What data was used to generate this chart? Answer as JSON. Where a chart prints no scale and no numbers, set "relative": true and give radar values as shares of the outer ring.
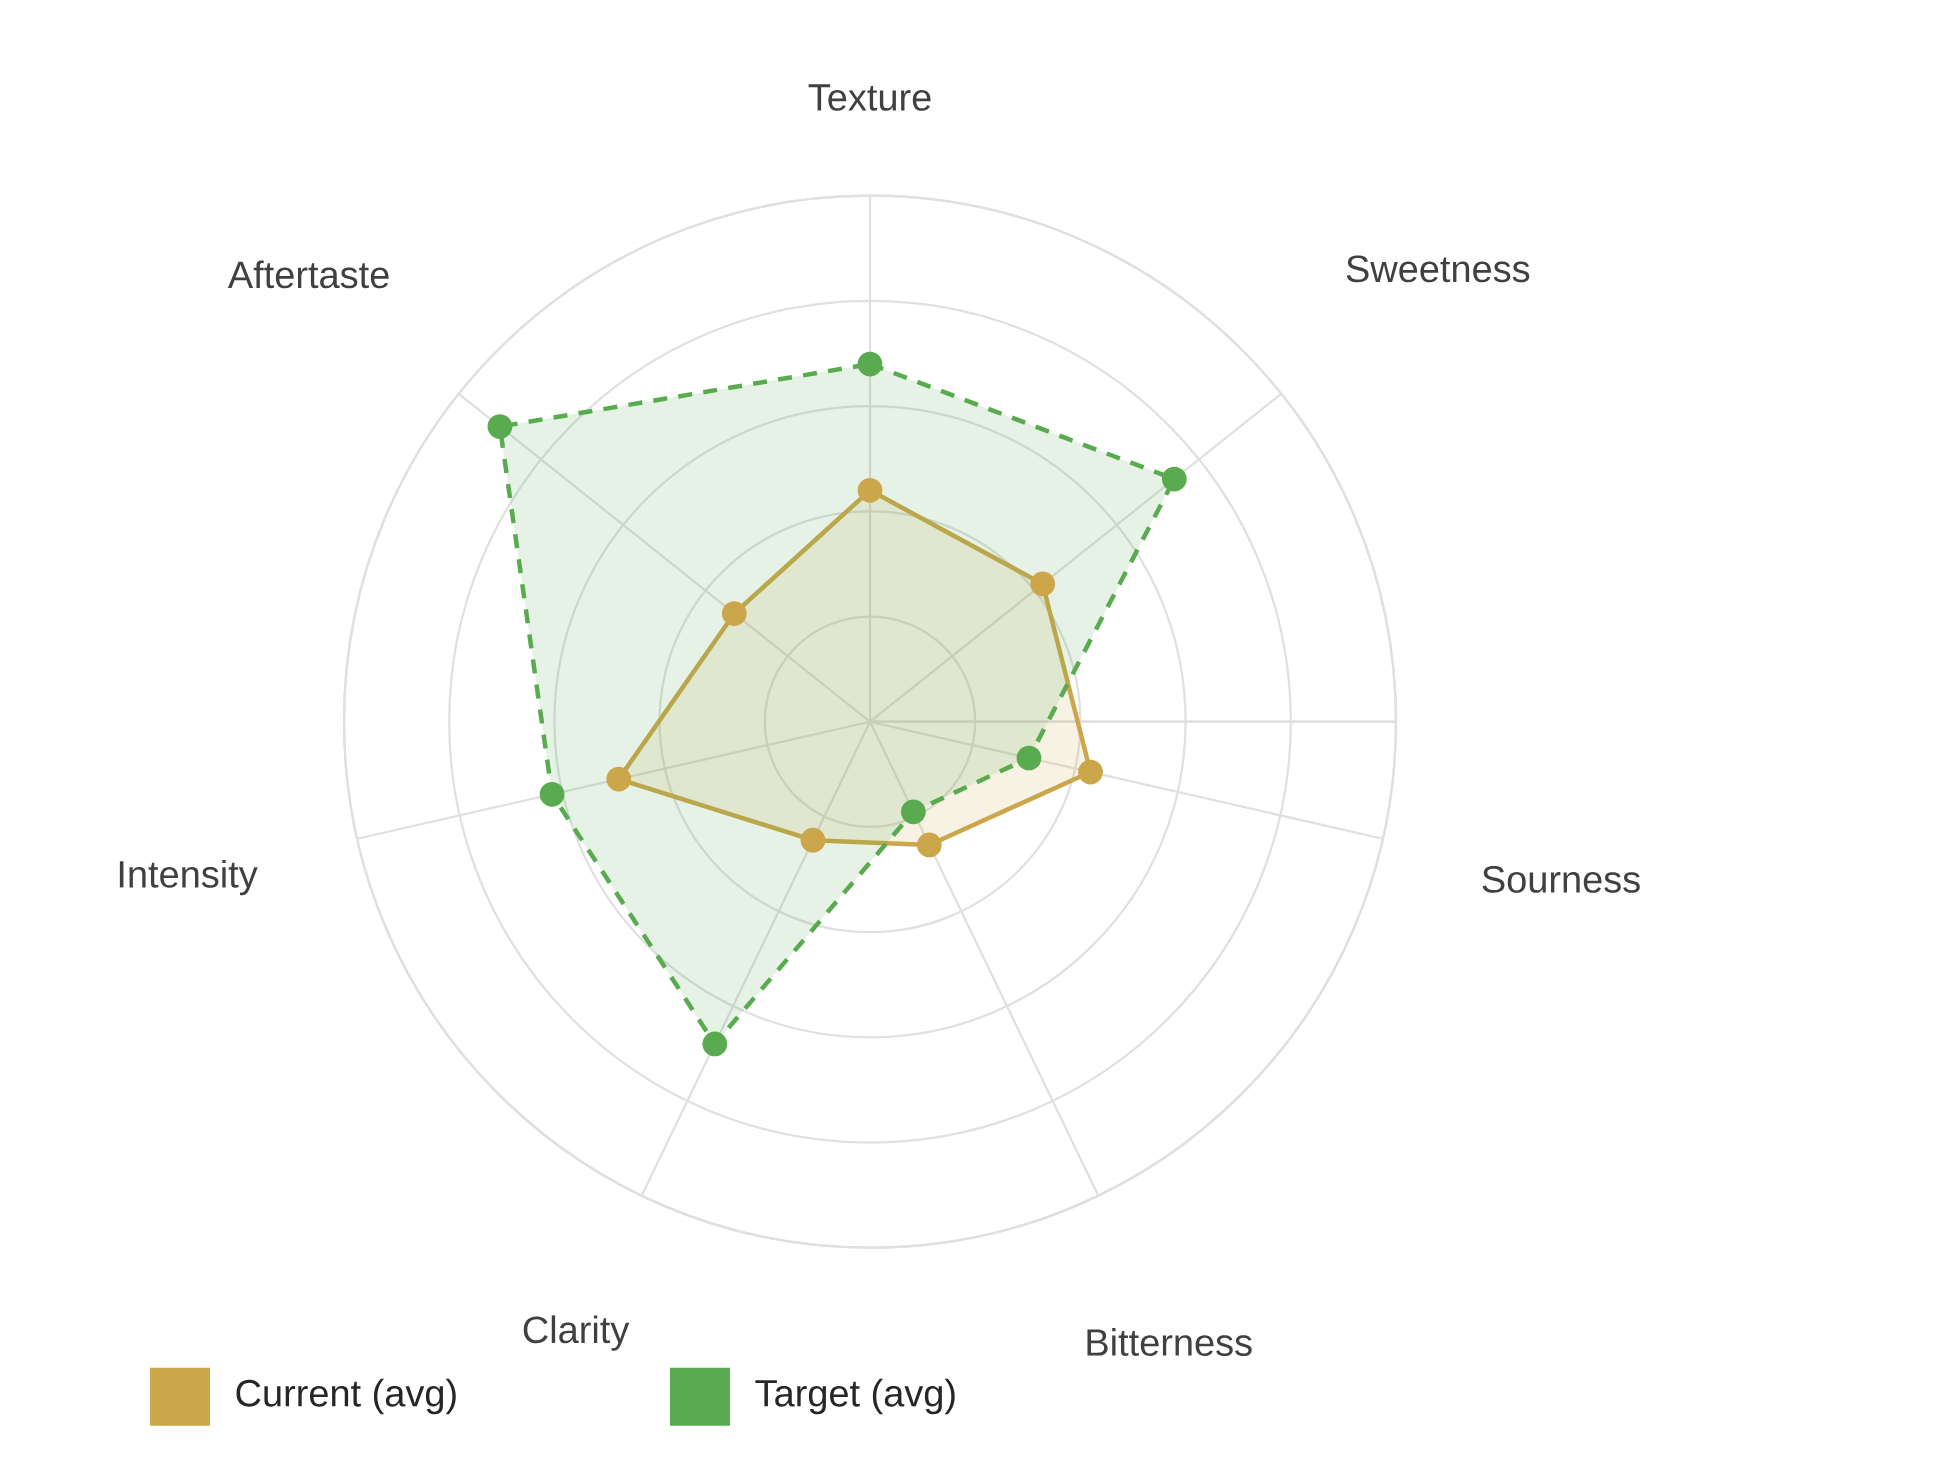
{
  "chart_data": {
    "type": "radar",
    "relative": true,
    "categories": [
      "Texture",
      "Sweetness",
      "Sourness",
      "Bitterness",
      "Clarity",
      "Intensity",
      "Aftertaste"
    ],
    "series": [
      {
        "name": "Current (avg)",
        "color": "#cca64a",
        "line_style": "solid",
        "values": [
          0.44,
          0.42,
          0.43,
          0.26,
          0.25,
          0.49,
          0.33
        ]
      },
      {
        "name": "Target (avg)",
        "color": "#5aab4f",
        "line_style": "dashed",
        "values": [
          0.68,
          0.74,
          0.31,
          0.19,
          0.68,
          0.62,
          0.9
        ]
      }
    ],
    "marker": "circle",
    "grid": true,
    "legend": "bottom left"
  }
}
